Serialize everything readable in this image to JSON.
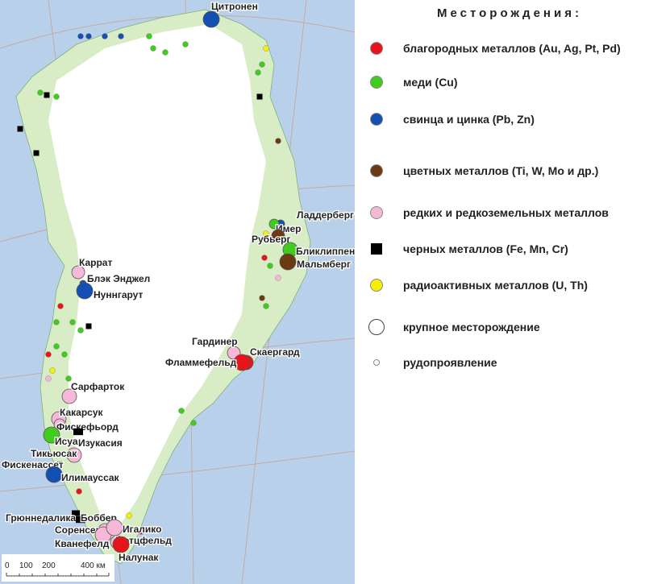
{
  "legend": {
    "title": "Месторождения:",
    "items": [
      {
        "label": "благородных металлов (Au, Ag, Pt, Pd)",
        "symbol": "circle",
        "color": "#e8141c"
      },
      {
        "label": "меди (Cu)",
        "symbol": "circle",
        "color": "#3fcc1e"
      },
      {
        "label": "свинца и цинка (Pb, Zn)",
        "symbol": "circle",
        "color": "#1450b4"
      },
      {
        "label": "цветных металлов (Ti, W, Mo и др.)",
        "symbol": "circle",
        "color": "#6b3a12"
      },
      {
        "label": "редких и редкоземельных металлов",
        "symbol": "circle",
        "color": "#f5b8d6"
      },
      {
        "label": "черных металлов (Fe, Mn, Cr)",
        "symbol": "square",
        "color": "#000000"
      },
      {
        "label": "радиоактивных металлов (U, Th)",
        "symbol": "circle",
        "color": "#f5f000"
      },
      {
        "label": "крупное месторождение",
        "symbol": "large-circle",
        "color": "#ffffff"
      },
      {
        "label": "рудопроявление",
        "symbol": "small-circle",
        "color": "#ffffff"
      }
    ]
  },
  "deposits": [
    {
      "name": "Цитронен",
      "type": "pbzn"
    },
    {
      "name": "Ладдерберг",
      "type": "pbzn"
    },
    {
      "name": "Имер",
      "type": "cu"
    },
    {
      "name": "Рубьерг",
      "type": "nonferrous"
    },
    {
      "name": "Бликлиппен",
      "type": "cu"
    },
    {
      "name": "Мальмберг",
      "type": "nonferrous"
    },
    {
      "name": "Каррат",
      "type": "rare"
    },
    {
      "name": "Блэк Энджел",
      "type": "pbzn"
    },
    {
      "name": "Нуннгарут",
      "type": "pbzn"
    },
    {
      "name": "Гардинер",
      "type": "rare"
    },
    {
      "name": "Скаергард",
      "type": "precious"
    },
    {
      "name": "Фламмефельд",
      "type": "precious"
    },
    {
      "name": "Сарфарток",
      "type": "rare"
    },
    {
      "name": "Какарсук",
      "type": "rare"
    },
    {
      "name": "Фискефьорд",
      "type": "rare"
    },
    {
      "name": "Исуа",
      "type": "cu"
    },
    {
      "name": "Изукасия",
      "type": "ferrous"
    },
    {
      "name": "Тикьюсак",
      "type": "rare"
    },
    {
      "name": "Фискенассет",
      "type": "ferrous"
    },
    {
      "name": "Илимауссак",
      "type": "pbzn"
    },
    {
      "name": "Грюннедалика",
      "type": "ferrous"
    },
    {
      "name": "Боббер",
      "type": "ferrous"
    },
    {
      "name": "Соренсен",
      "type": "rare"
    },
    {
      "name": "Кванефелд",
      "type": "rare"
    },
    {
      "name": "Игалико",
      "type": "rare"
    },
    {
      "name": "Мотцфельд",
      "type": "rare"
    },
    {
      "name": "Налунак",
      "type": "precious"
    }
  ],
  "scale": {
    "ticks": [
      "0",
      "100",
      "200",
      "400 км"
    ]
  },
  "colors": {
    "ocean": "#b9d0ea",
    "land": "#d8ecc6",
    "ice": "#ffffff",
    "grid": "#c8a8a0"
  }
}
